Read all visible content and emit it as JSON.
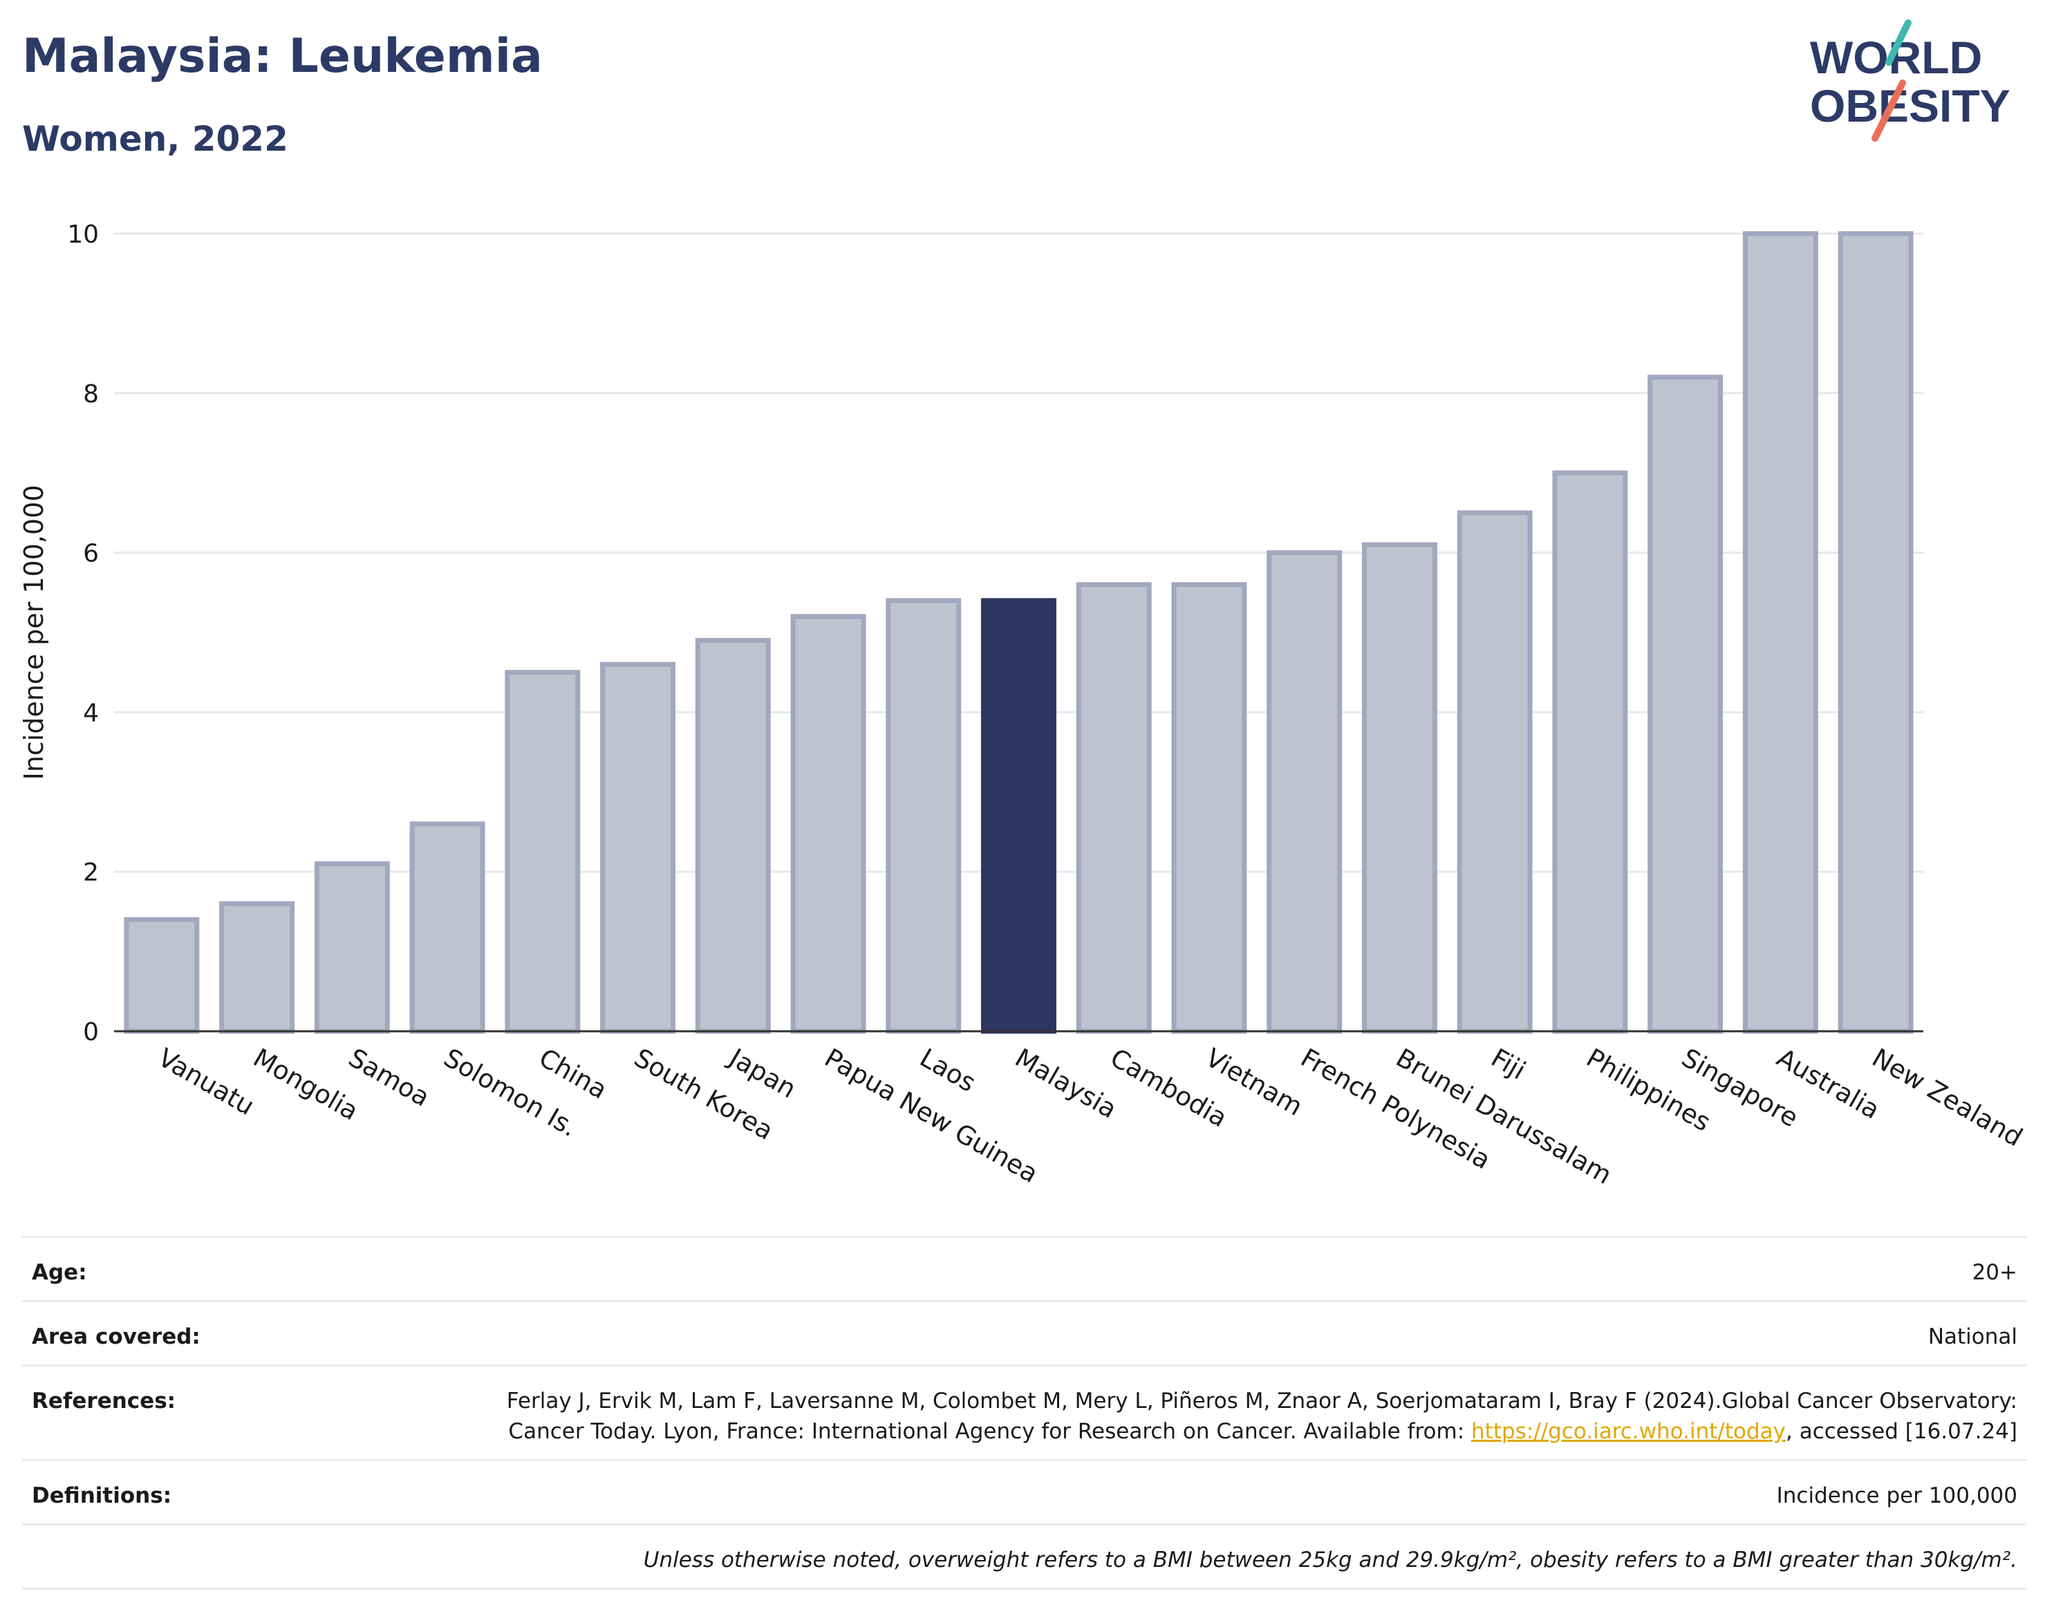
{
  "header": {
    "title": "Malaysia: Leukemia",
    "subtitle": "Women, 2022"
  },
  "logo": {
    "line1": "WORLD",
    "line2": "OBESITY",
    "text_color": "#2c3a66",
    "accent_teal": "#3fb8b0",
    "accent_coral": "#e8705a"
  },
  "chart_data": {
    "type": "bar",
    "title": "Malaysia: Leukemia",
    "subtitle": "Women, 2022",
    "ylabel": "Incidence per 100,000",
    "xlabel": "",
    "ylim": [
      0,
      10
    ],
    "yticks": [
      0,
      2,
      4,
      6,
      8,
      10
    ],
    "grid": true,
    "categories": [
      "Vanuatu",
      "Mongolia",
      "Samoa",
      "Solomon Is.",
      "China",
      "South Korea",
      "Japan",
      "Papua New Guinea",
      "Laos",
      "Malaysia",
      "Cambodia",
      "Vietnam",
      "French Polynesia",
      "Brunei Darussalam",
      "Fiji",
      "Philippines",
      "Singapore",
      "Australia",
      "New Zealand"
    ],
    "values": [
      1.4,
      1.6,
      2.1,
      2.6,
      4.5,
      4.6,
      4.9,
      5.2,
      5.4,
      5.4,
      5.6,
      5.6,
      6.0,
      6.1,
      6.5,
      7.0,
      8.2,
      10.0,
      10.0
    ],
    "highlight": "Malaysia",
    "colors": {
      "bar": "#bfc3d0",
      "bar_border": "#a2a8bd",
      "highlight": "#2c3660",
      "grid": "#e6e8ee",
      "axis": "#333333"
    }
  },
  "info": {
    "age": {
      "label": "Age:",
      "value": "20+"
    },
    "area": {
      "label": "Area covered:",
      "value": "National"
    },
    "references": {
      "label": "References:",
      "text1": "Ferlay J, Ervik M, Lam F, Laversanne M, Colombet M, Mery L, Piñeros M, Znaor A, Soerjomataram I, Bray F (2024).Global Cancer Observatory: Cancer Today. Lyon, France: International Agency for Research on Cancer. Available from: ",
      "link": "https://gco.iarc.who.int/today",
      "text2": ", accessed [16.07.24]"
    },
    "definitions": {
      "label": "Definitions:",
      "value": "Incidence per 100,000"
    },
    "note": "Unless otherwise noted, overweight refers to a BMI between 25kg and 29.9kg/m², obesity refers to a BMI greater than 30kg/m²."
  }
}
